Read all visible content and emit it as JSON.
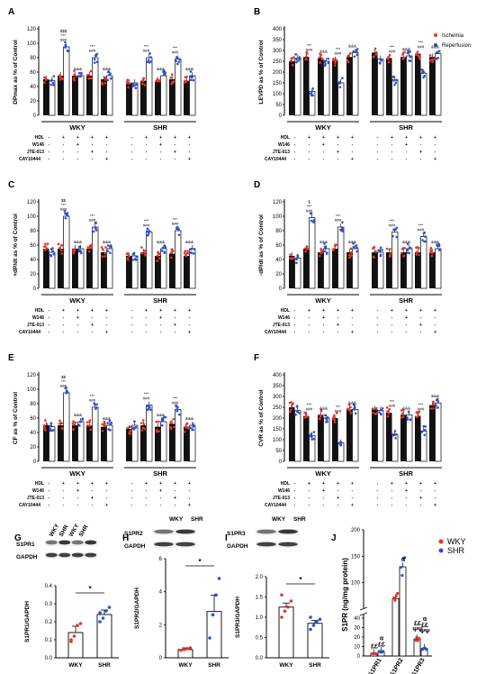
{
  "legend_top": {
    "ischemia": "Ischemia",
    "reperfusion": "Reperfusion"
  },
  "treat_labels": [
    "HDL",
    "W146",
    "JTE-013",
    "CAY10444"
  ],
  "treat_signs": [
    [
      "-",
      "+",
      "+",
      "+",
      "+"
    ],
    [
      "-",
      "-",
      "+",
      "-",
      "-"
    ],
    [
      "-",
      "-",
      "-",
      "+",
      "-"
    ],
    [
      "-",
      "-",
      "-",
      "-",
      "+"
    ]
  ],
  "colors": {
    "ischemia": "#e8332a",
    "reperfusion": "#2d4fd6",
    "wky": "#e8332a",
    "shr": "#2d4fd6"
  },
  "panels_top": [
    {
      "letter": "A",
      "ylabel": "DPmax as % of Control",
      "ylim": [
        0,
        120
      ],
      "ticks": [
        0,
        20,
        40,
        60,
        80,
        100,
        120
      ],
      "groups": [
        "WKY",
        "SHR"
      ],
      "isch": [
        [
          50,
          55,
          55,
          55,
          50
        ],
        [
          45,
          48,
          48,
          50,
          48
        ]
      ],
      "rep": [
        [
          48,
          95,
          55,
          80,
          55
        ],
        [
          45,
          80,
          55,
          78,
          55
        ]
      ],
      "ann": [
        [
          "",
          "$$$ *** ###",
          "&&&",
          "*** ###",
          "&&&"
        ],
        [
          "",
          "*** ###",
          "&&&",
          "*** ###",
          "&&&"
        ]
      ]
    },
    {
      "letter": "B",
      "ylabel": "LEVPD as % of Control",
      "ylim": [
        0,
        400
      ],
      "ticks": [
        0,
        50,
        100,
        150,
        200,
        250,
        300,
        350,
        400
      ],
      "groups": [
        "WKY",
        "SHR"
      ],
      "isch": [
        [
          250,
          270,
          265,
          255,
          270
        ],
        [
          290,
          265,
          270,
          285,
          270
        ]
      ],
      "rep": [
        [
          265,
          110,
          250,
          150,
          290
        ],
        [
          260,
          165,
          275,
          195,
          285
        ]
      ],
      "ann": [
        [
          "",
          "*** ###",
          "&&&",
          "*** ###",
          "&&&"
        ],
        [
          "",
          "*** ###",
          "&&&",
          "*** ###",
          "&&&"
        ]
      ]
    },
    {
      "letter": "C",
      "ylabel": "+dP/dt as % of Control",
      "ylim": [
        0,
        120
      ],
      "ticks": [
        0,
        20,
        40,
        60,
        80,
        100,
        120
      ],
      "groups": [
        "WKY",
        "SHR"
      ],
      "isch": [
        [
          55,
          55,
          55,
          55,
          50
        ],
        [
          45,
          50,
          45,
          48,
          45
        ]
      ],
      "rep": [
        [
          50,
          100,
          55,
          85,
          55
        ],
        [
          45,
          78,
          55,
          80,
          55
        ]
      ],
      "ann": [
        [
          "",
          "$$ *** ###",
          "&&&",
          "*** ###",
          "&&&"
        ],
        [
          "",
          "*** ###",
          "&&&",
          "*** ###",
          "&&&"
        ]
      ]
    },
    {
      "letter": "D",
      "ylabel": "-dP/dt as % of Control",
      "ylim": [
        0,
        120
      ],
      "ticks": [
        0,
        20,
        40,
        60,
        80,
        100,
        120
      ],
      "groups": [
        "WKY",
        "SHR"
      ],
      "isch": [
        [
          45,
          55,
          50,
          55,
          50
        ],
        [
          50,
          50,
          50,
          50,
          50
        ]
      ],
      "rep": [
        [
          42,
          98,
          55,
          85,
          55
        ],
        [
          50,
          78,
          55,
          72,
          55
        ]
      ],
      "ann": [
        [
          "",
          "$ *** ###",
          "&&&",
          "*** ###",
          "&&&"
        ],
        [
          "",
          "*** ###",
          "&&&",
          "*** ###",
          "&&&"
        ]
      ]
    },
    {
      "letter": "E",
      "ylabel": "CF as % of Control",
      "ylim": [
        0,
        120
      ],
      "ticks": [
        0,
        20,
        40,
        60,
        80,
        100,
        120
      ],
      "groups": [
        "WKY",
        "SHR"
      ],
      "isch": [
        [
          50,
          50,
          50,
          50,
          48
        ],
        [
          45,
          50,
          48,
          52,
          48
        ]
      ],
      "rep": [
        [
          48,
          95,
          55,
          75,
          50
        ],
        [
          50,
          78,
          55,
          72,
          50
        ]
      ],
      "ann": [
        [
          "",
          "$$ *** ###",
          "&&&",
          "*** ###",
          "&&&"
        ],
        [
          "",
          "*** ###",
          "&&&",
          "*** ###",
          "&&&"
        ]
      ]
    },
    {
      "letter": "F",
      "ylabel": "CVR as % of Control",
      "ylim": [
        0,
        400
      ],
      "ticks": [
        0,
        50,
        100,
        150,
        200,
        250,
        300,
        350,
        400
      ],
      "groups": [
        "WKY",
        "SHR"
      ],
      "isch": [
        [
          250,
          210,
          215,
          200,
          240
        ],
        [
          240,
          225,
          215,
          210,
          260
        ]
      ],
      "rep": [
        [
          235,
          120,
          200,
          85,
          240
        ],
        [
          235,
          125,
          215,
          140,
          270
        ]
      ],
      "ann": [
        [
          "",
          "*** ###",
          "&&&",
          "*** ###",
          "&&&"
        ],
        [
          "",
          "*** ###",
          "&&&",
          "*** ###",
          "&&&"
        ]
      ]
    }
  ],
  "blot_G": {
    "letter": "G",
    "cols": [
      "WKY",
      "SHR",
      "WKY",
      "SHR"
    ],
    "rows": [
      "S1PR1",
      "GAPDH"
    ]
  },
  "blot_H": {
    "letter": "H",
    "cols": [
      "WKY",
      "SHR"
    ],
    "rows": [
      "S1PR2",
      "GAPDH"
    ]
  },
  "blot_I": {
    "letter": "I",
    "cols": [
      "WKY",
      "SHR"
    ],
    "rows": [
      "S1PR3",
      "GAPDH"
    ]
  },
  "panels_bottom": [
    {
      "ylabel": "S1PR1/GAPDH",
      "ylim": [
        0,
        0.4
      ],
      "ticks": [
        "0.0",
        "0.1",
        "0.2",
        "0.3",
        "0.4"
      ],
      "tickvals": [
        0,
        0.1,
        0.2,
        0.3,
        0.4
      ],
      "categories": [
        "WKY",
        "SHR"
      ],
      "values": [
        0.14,
        0.24
      ],
      "err": [
        0.035,
        0.025
      ],
      "pts": [
        [
          0.09,
          0.12,
          0.18,
          0.19,
          0.1
        ],
        [
          0.2,
          0.22,
          0.26,
          0.28,
          0.25
        ]
      ],
      "sig": "*"
    },
    {
      "ylabel": "S1PR2/GAPDH",
      "ylim": [
        0,
        6
      ],
      "ticks": [
        "0",
        "2",
        "4",
        "6"
      ],
      "tickvals": [
        0,
        2,
        4,
        6
      ],
      "categories": [
        "WKY",
        "SHR"
      ],
      "values": [
        0.5,
        2.8
      ],
      "err": [
        0.1,
        1.0
      ],
      "pts": [
        [
          0.45,
          0.5,
          0.55,
          0.6
        ],
        [
          1.2,
          2.6,
          3.8,
          4.8
        ]
      ],
      "sig": "*"
    },
    {
      "ylabel": "S1PR3/GAPDH",
      "ylim": [
        0,
        2.0
      ],
      "ticks": [
        "0.0",
        "0.5",
        "1.0",
        "1.5",
        "2.0"
      ],
      "tickvals": [
        0,
        0.5,
        1.0,
        1.5,
        2.0
      ],
      "categories": [
        "WKY",
        "SHR"
      ],
      "values": [
        1.25,
        0.85
      ],
      "err": [
        0.1,
        0.07
      ],
      "pts": [
        [
          1.0,
          1.15,
          1.25,
          1.4,
          1.55
        ],
        [
          0.7,
          0.8,
          0.9,
          0.95,
          1.0
        ]
      ],
      "sig": "*"
    }
  ],
  "chart_J": {
    "letter": "J",
    "ylabel": "S1PR (ng/mg protein)",
    "categories": [
      "S1PR1",
      "S1PR2",
      "S1PR3"
    ],
    "series": [
      {
        "name": "WKY",
        "values": [
          2.5,
          70,
          18
        ]
      },
      {
        "name": "SHR",
        "values": [
          4.5,
          130,
          8
        ]
      }
    ],
    "ticks_low": [
      "0",
      "10",
      "20",
      "30",
      "40"
    ],
    "ticks_high": [
      "100",
      "150",
      "200"
    ],
    "ann": [
      [
        "££",
        "",
        ""
      ],
      [
        "α ££",
        "α",
        "α ££ ΨΨ"
      ]
    ],
    "ann_w": [
      "",
      "",
      "££ ΨΨ"
    ]
  },
  "letters_blot": [
    "H",
    "I"
  ]
}
